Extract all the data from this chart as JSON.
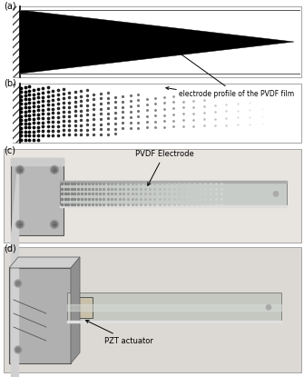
{
  "label_a": "(a)",
  "label_b": "(b)",
  "label_c": "(c)",
  "label_d": "(d)",
  "annotation_ab": "electrode profile of the PVDF film",
  "annotation_c": "PVDF Electrode",
  "annotation_d": "PZT actuator"
}
